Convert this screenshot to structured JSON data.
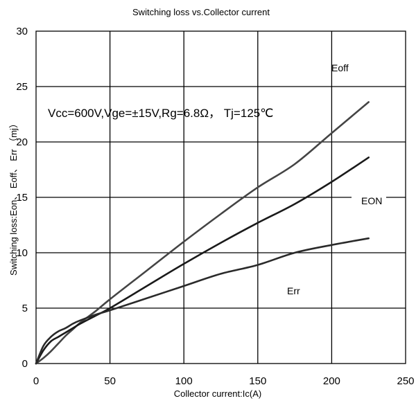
{
  "chart_data": {
    "type": "line",
    "title": "Switching loss vs.Collector current",
    "xlabel": "Collector current:Ic(A)",
    "ylabel": "Switching loss:Eon、 Eoff、 Err （mj）",
    "xlim": [
      0,
      250
    ],
    "ylim": [
      0,
      30
    ],
    "xticks": [
      0,
      50,
      100,
      150,
      200,
      250
    ],
    "yticks": [
      0,
      5,
      10,
      15,
      20,
      25,
      30
    ],
    "grid": true,
    "annotation": "Vcc=600V,Vge=±15V,Rg=6.8Ω，  Tj=125℃",
    "series": [
      {
        "name": "Eoff",
        "color": "#444444",
        "x": [
          0,
          5,
          10,
          15,
          20,
          25,
          30,
          40,
          50,
          75,
          100,
          125,
          150,
          175,
          200,
          225
        ],
        "y": [
          0,
          0.5,
          1.1,
          1.8,
          2.5,
          3.1,
          3.7,
          4.7,
          5.8,
          8.4,
          11.0,
          13.5,
          15.9,
          18.0,
          20.8,
          23.6
        ]
      },
      {
        "name": "EON",
        "color": "#1a1a1a",
        "x": [
          0,
          5,
          10,
          15,
          20,
          25,
          30,
          40,
          50,
          75,
          100,
          125,
          150,
          175,
          200,
          225
        ],
        "y": [
          0,
          1.2,
          2.0,
          2.4,
          2.8,
          3.2,
          3.6,
          4.3,
          5.0,
          7.0,
          9.0,
          10.9,
          12.7,
          14.4,
          16.4,
          18.6
        ]
      },
      {
        "name": "Err",
        "color": "#2a2a2a",
        "x": [
          0,
          5,
          10,
          15,
          20,
          25,
          30,
          40,
          50,
          75,
          100,
          125,
          150,
          175,
          200,
          225
        ],
        "y": [
          0,
          1.6,
          2.4,
          2.9,
          3.2,
          3.6,
          3.9,
          4.4,
          4.8,
          5.9,
          7.0,
          8.1,
          8.9,
          10.0,
          10.7,
          11.3
        ]
      }
    ]
  }
}
